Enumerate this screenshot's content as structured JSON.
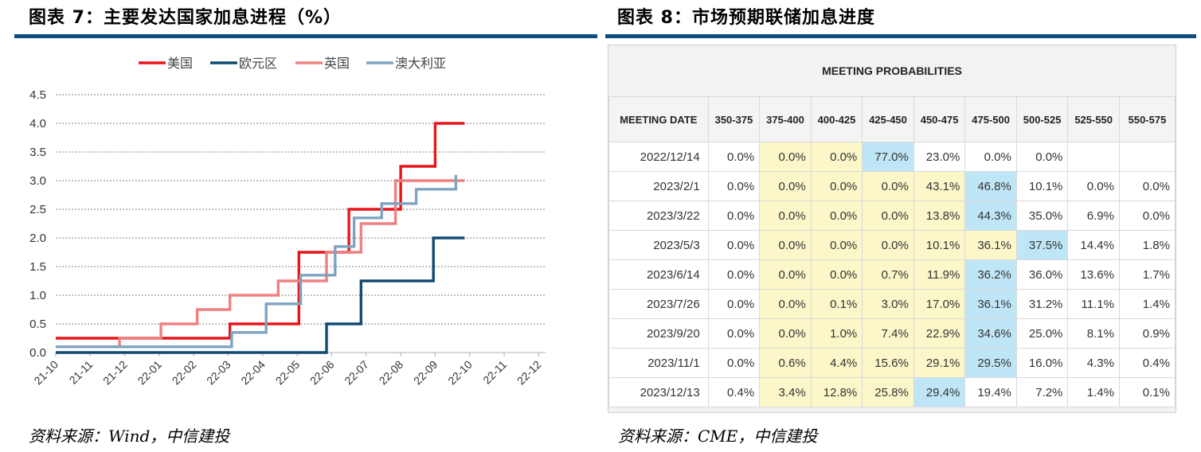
{
  "left": {
    "title": "图表 7：主要发达国家加息进程（%）",
    "source": "资料来源：Wind，中信建投"
  },
  "right": {
    "title": "图表 8：市场预期联储加息进度",
    "source": "资料来源：CME，中信建投",
    "header": "MEETING PROBABILITIES",
    "date_header": "MEETING DATE",
    "columns": [
      "350-375",
      "375-400",
      "400-425",
      "425-450",
      "450-475",
      "475-500",
      "500-525",
      "525-550",
      "550-575"
    ],
    "rows": [
      {
        "date": "2022/12/14",
        "values": [
          "0.0%",
          "0.0%",
          "0.0%",
          "77.0%",
          "23.0%",
          "0.0%",
          "0.0%",
          "",
          ""
        ]
      },
      {
        "date": "2023/2/1",
        "values": [
          "0.0%",
          "0.0%",
          "0.0%",
          "0.0%",
          "43.1%",
          "46.8%",
          "10.1%",
          "0.0%",
          "0.0%"
        ]
      },
      {
        "date": "2023/3/22",
        "values": [
          "0.0%",
          "0.0%",
          "0.0%",
          "0.0%",
          "13.8%",
          "44.3%",
          "35.0%",
          "6.9%",
          "0.0%"
        ]
      },
      {
        "date": "2023/5/3",
        "values": [
          "0.0%",
          "0.0%",
          "0.0%",
          "0.0%",
          "10.1%",
          "36.1%",
          "37.5%",
          "14.4%",
          "1.8%"
        ]
      },
      {
        "date": "2023/6/14",
        "values": [
          "0.0%",
          "0.0%",
          "0.0%",
          "0.7%",
          "11.9%",
          "36.2%",
          "36.0%",
          "13.6%",
          "1.7%"
        ]
      },
      {
        "date": "2023/7/26",
        "values": [
          "0.0%",
          "0.0%",
          "0.1%",
          "3.0%",
          "17.0%",
          "36.1%",
          "31.2%",
          "11.1%",
          "1.4%"
        ]
      },
      {
        "date": "2023/9/20",
        "values": [
          "0.0%",
          "0.0%",
          "1.0%",
          "7.4%",
          "22.9%",
          "34.6%",
          "25.0%",
          "8.1%",
          "0.9%"
        ]
      },
      {
        "date": "2023/11/1",
        "values": [
          "0.0%",
          "0.6%",
          "4.4%",
          "15.6%",
          "29.1%",
          "29.5%",
          "16.0%",
          "4.3%",
          "0.4%"
        ]
      },
      {
        "date": "2023/12/13",
        "values": [
          "0.4%",
          "3.4%",
          "12.8%",
          "25.8%",
          "29.4%",
          "19.4%",
          "7.2%",
          "1.4%",
          "0.1%"
        ]
      }
    ],
    "highlights": {
      "yellow": [
        [
          0,
          1
        ],
        [
          0,
          2
        ],
        [
          1,
          1
        ],
        [
          1,
          2
        ],
        [
          1,
          3
        ],
        [
          1,
          4
        ],
        [
          2,
          1
        ],
        [
          2,
          2
        ],
        [
          2,
          3
        ],
        [
          2,
          4
        ],
        [
          3,
          1
        ],
        [
          3,
          2
        ],
        [
          3,
          3
        ],
        [
          3,
          4
        ],
        [
          3,
          5
        ],
        [
          4,
          1
        ],
        [
          4,
          2
        ],
        [
          4,
          3
        ],
        [
          4,
          4
        ],
        [
          5,
          1
        ],
        [
          5,
          2
        ],
        [
          5,
          3
        ],
        [
          5,
          4
        ],
        [
          6,
          1
        ],
        [
          6,
          2
        ],
        [
          6,
          3
        ],
        [
          6,
          4
        ],
        [
          7,
          1
        ],
        [
          7,
          2
        ],
        [
          7,
          3
        ],
        [
          7,
          4
        ],
        [
          8,
          1
        ],
        [
          8,
          2
        ],
        [
          8,
          3
        ]
      ],
      "blue": [
        [
          0,
          3
        ],
        [
          1,
          5
        ],
        [
          2,
          5
        ],
        [
          3,
          6
        ],
        [
          4,
          5
        ],
        [
          5,
          5
        ],
        [
          6,
          5
        ],
        [
          7,
          5
        ],
        [
          8,
          4
        ]
      ]
    }
  },
  "chart_data": {
    "type": "line",
    "step": true,
    "categories": [
      "21-10",
      "21-11",
      "21-12",
      "22-01",
      "22-02",
      "22-03",
      "22-04",
      "22-05",
      "22-06",
      "22-07",
      "22-08",
      "22-09",
      "22-10",
      "22-11",
      "22-12"
    ],
    "ylim": [
      0,
      4.5
    ],
    "yticks": [
      "0.0",
      "0.5",
      "1.0",
      "1.5",
      "2.0",
      "2.5",
      "3.0",
      "3.5",
      "4.0",
      "4.5"
    ],
    "grid": true,
    "legend_position": "top",
    "series": [
      {
        "name": "美国",
        "color": "#e8141b",
        "points": [
          [
            0,
            0.25
          ],
          [
            4.1,
            0.25
          ],
          [
            5.05,
            0.25
          ],
          [
            5.05,
            0.5
          ],
          [
            6.05,
            0.5
          ],
          [
            7.05,
            0.5
          ],
          [
            7.05,
            1.75
          ],
          [
            8.05,
            1.75
          ],
          [
            8.5,
            1.75
          ],
          [
            8.5,
            2.5
          ],
          [
            10.0,
            2.5
          ],
          [
            10.0,
            3.25
          ],
          [
            11.0,
            3.25
          ],
          [
            11.0,
            4.0
          ],
          [
            11.85,
            4.0
          ]
        ]
      },
      {
        "name": "欧元区",
        "color": "#124a72",
        "points": [
          [
            0,
            0
          ],
          [
            7.85,
            0
          ],
          [
            7.85,
            0.5
          ],
          [
            8.85,
            0.5
          ],
          [
            8.85,
            1.25
          ],
          [
            10.95,
            1.25
          ],
          [
            10.95,
            2.0
          ],
          [
            11.85,
            2.0
          ]
        ]
      },
      {
        "name": "英国",
        "color": "#f08080",
        "points": [
          [
            0,
            0.1
          ],
          [
            1.85,
            0.1
          ],
          [
            1.85,
            0.25
          ],
          [
            3.05,
            0.25
          ],
          [
            3.05,
            0.5
          ],
          [
            4.1,
            0.5
          ],
          [
            4.1,
            0.75
          ],
          [
            5.05,
            0.75
          ],
          [
            5.05,
            1.0
          ],
          [
            6.45,
            1.0
          ],
          [
            6.45,
            1.25
          ],
          [
            7.85,
            1.25
          ],
          [
            7.85,
            1.75
          ],
          [
            8.85,
            1.75
          ],
          [
            8.85,
            2.25
          ],
          [
            9.85,
            2.25
          ],
          [
            9.85,
            3.0
          ],
          [
            11.85,
            3.0
          ]
        ]
      },
      {
        "name": "澳大利亚",
        "color": "#7fa3c1",
        "points": [
          [
            0,
            0.1
          ],
          [
            5.1,
            0.1
          ],
          [
            5.1,
            0.35
          ],
          [
            6.1,
            0.35
          ],
          [
            6.1,
            0.85
          ],
          [
            7.1,
            0.85
          ],
          [
            7.1,
            1.35
          ],
          [
            8.1,
            1.35
          ],
          [
            8.1,
            1.85
          ],
          [
            8.65,
            1.85
          ],
          [
            8.65,
            2.35
          ],
          [
            9.45,
            2.35
          ],
          [
            9.45,
            2.6
          ],
          [
            10.45,
            2.6
          ],
          [
            10.45,
            2.85
          ],
          [
            11.6,
            2.85
          ],
          [
            11.6,
            3.1
          ]
        ]
      }
    ]
  }
}
